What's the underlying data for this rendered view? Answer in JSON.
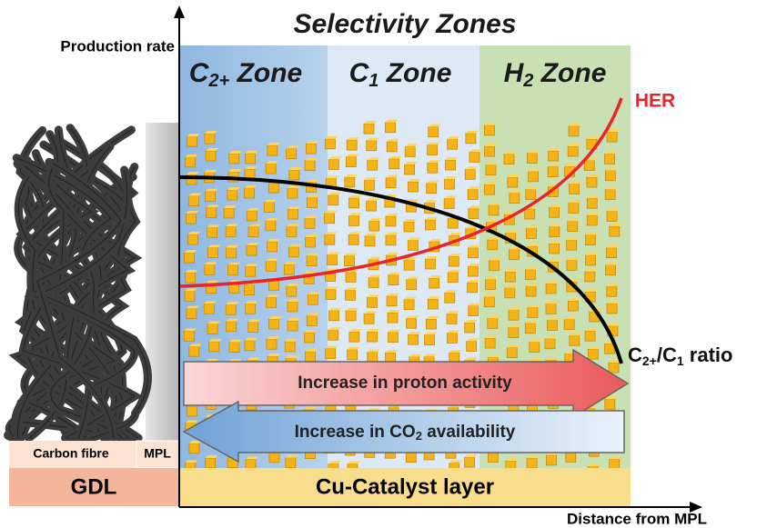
{
  "title": "Selectivity Zones",
  "y_axis_label": "Production rate",
  "x_axis_label": "Distance from MPL",
  "zones": [
    {
      "symbol": "C",
      "subscript": "2+",
      "label": "Zone"
    },
    {
      "symbol": "C",
      "subscript": "1",
      "label": "Zone"
    },
    {
      "symbol": "H",
      "subscript": "2",
      "label": "Zone"
    }
  ],
  "curves": {
    "her": "HER",
    "ratio": {
      "a": "C",
      "a_sub": "2+",
      "slash": "/C",
      "b_sub": "1",
      "rest": "ratio"
    }
  },
  "arrows": {
    "proton": "Increase in proton activity",
    "co2": {
      "before": "Increase in CO",
      "sub": "2",
      "after": "availability"
    }
  },
  "layers": {
    "carbon_fibre": "Carbon fibre",
    "mpl": "MPL",
    "gdl": "GDL",
    "catalyst": "Cu-Catalyst layer"
  }
}
